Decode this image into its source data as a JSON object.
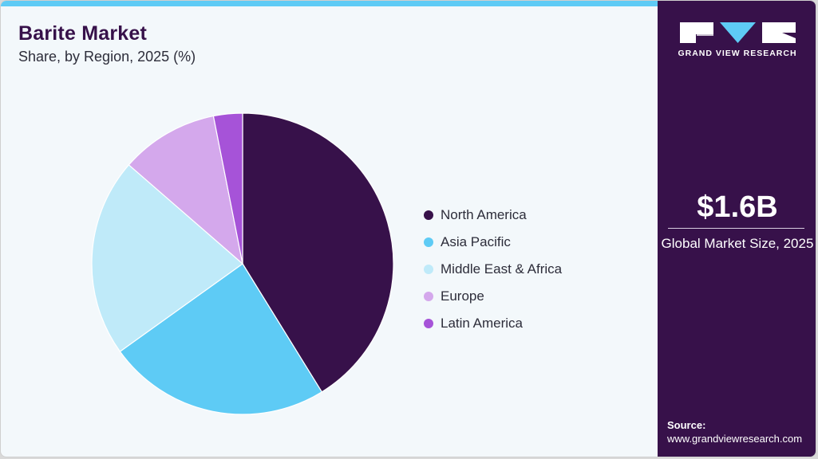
{
  "header": {
    "title": "Barite Market",
    "subtitle": "Share, by Region, 2025 (%)"
  },
  "colors": {
    "accent_bar": "#5ecbf5",
    "panel": "#37114a",
    "background": "#f3f8fb"
  },
  "chart_data": {
    "type": "pie",
    "title": "Barite Market",
    "subtitle": "Share, by Region, 2025 (%)",
    "categories": [
      "North America",
      "Asia Pacific",
      "Middle East & Africa",
      "Europe",
      "Latin America"
    ],
    "values": [
      41.2,
      23.9,
      21.3,
      10.5,
      3.1
    ],
    "colors": [
      "#37114a",
      "#5ecbf5",
      "#bfeaf9",
      "#d4a8ec",
      "#a653d8"
    ],
    "start_angle": "12 o'clock, clockwise",
    "legend_position": "right"
  },
  "legend": {
    "items": [
      {
        "label": "North America",
        "color": "#37114a"
      },
      {
        "label": "Asia Pacific",
        "color": "#5ecbf5"
      },
      {
        "label": "Middle East & Africa",
        "color": "#bfeaf9"
      },
      {
        "label": "Europe",
        "color": "#d4a8ec"
      },
      {
        "label": "Latin America",
        "color": "#a653d8"
      }
    ]
  },
  "sidebar": {
    "logo_text": "GRAND VIEW RESEARCH",
    "market_size_value": "$1.6B",
    "market_size_label": "Global Market Size, 2025",
    "source_label": "Source:",
    "source_url": "www.grandviewresearch.com"
  }
}
